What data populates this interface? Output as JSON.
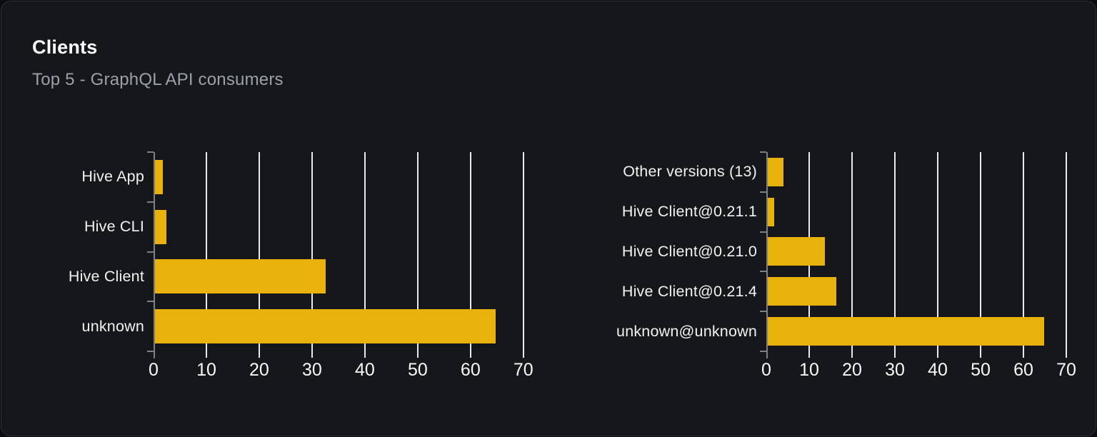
{
  "card": {
    "title": "Clients",
    "subtitle": "Top 5 - GraphQL API consumers"
  },
  "colors": {
    "bar": "#e8b20b",
    "page_background": "#0c0d10",
    "card_background": "#15171b",
    "card_border": "#2b2e35",
    "gridline": "#e7eaf0",
    "axis": "#7d7f86",
    "category_label": "#f1f2f4",
    "tick_label": "#f7f8f9",
    "title": "#ffffff",
    "subtitle": "#9aa1ab"
  },
  "chart_data": [
    {
      "id": "clients-by-name",
      "type": "bar",
      "orientation": "horizontal",
      "title": "",
      "xlabel": "",
      "ylabel": "",
      "categories": [
        "Hive App",
        "Hive CLI",
        "Hive Client",
        "unknown"
      ],
      "values": [
        1.5,
        2.2,
        32.3,
        64.5
      ],
      "xticks": [
        0,
        10,
        20,
        30,
        40,
        50,
        60,
        70
      ],
      "xlim": [
        0,
        73
      ],
      "grid": true,
      "legend": "none"
    },
    {
      "id": "clients-by-version",
      "type": "bar",
      "orientation": "horizontal",
      "title": "",
      "xlabel": "",
      "ylabel": "",
      "categories": [
        "Other versions (13)",
        "Hive Client@0.21.1",
        "Hive Client@0.21.0",
        "Hive Client@0.21.4",
        "unknown@unknown"
      ],
      "values": [
        3.7,
        1.5,
        13.3,
        16,
        64.5
      ],
      "xticks": [
        0,
        10,
        20,
        30,
        40,
        50,
        60,
        70
      ],
      "xlim": [
        0,
        72
      ],
      "grid": true,
      "legend": "none"
    }
  ]
}
